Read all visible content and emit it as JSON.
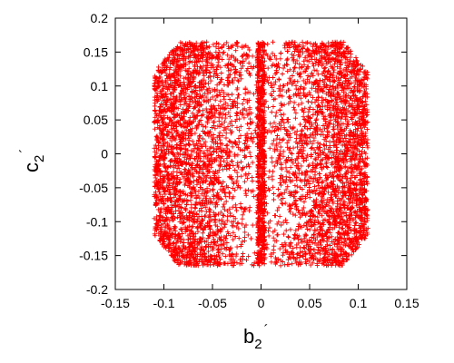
{
  "chart_data": {
    "type": "scatter",
    "title": "",
    "xlabel": {
      "base": "b",
      "sub": "2",
      "prime": "´"
    },
    "ylabel": {
      "base": "c",
      "sub": "2",
      "prime": "´"
    },
    "xlim": [
      -0.15,
      0.15
    ],
    "ylim": [
      -0.2,
      0.2
    ],
    "xticks": [
      "-0.15",
      "-0.1",
      "-0.05",
      "0",
      "0.05",
      "0.1",
      "0.15"
    ],
    "yticks": [
      "0.2",
      "0.15",
      "0.1",
      "0.05",
      "0",
      "-0.05",
      "-0.1",
      "-0.15",
      "-0.2"
    ],
    "grid": false,
    "legend": "none",
    "marker": "+",
    "color": "#ff0000",
    "region": {
      "description_points": "dense cloud of points; |c2'| <= ~0.165, |b2'| <= ~0.11; barrel-shaped envelope with a dense vertical column at b2' = 0",
      "b_max": 0.11,
      "c_max": 0.165,
      "c_top_narrow": 0.12,
      "b_top_at_cmax": 0.085,
      "column_halfwidth": 0.004
    }
  }
}
